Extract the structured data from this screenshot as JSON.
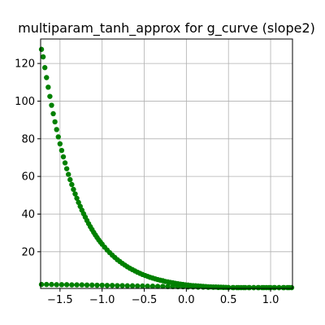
{
  "chart_data": {
    "type": "scatter",
    "title": "multiparam_tanh_approx for g_curve (slope2)",
    "xlabel": "",
    "ylabel": "",
    "xlim": [
      -1.73,
      1.26
    ],
    "ylim": [
      0.5,
      133
    ],
    "grid": true,
    "marker_color": "#008000",
    "x_ticks": [
      {
        "value": -1.5,
        "label": "−1.5"
      },
      {
        "value": -1.0,
        "label": "−1.0"
      },
      {
        "value": -0.5,
        "label": "−0.5"
      },
      {
        "value": 0.0,
        "label": "0.0"
      },
      {
        "value": 0.5,
        "label": "0.5"
      },
      {
        "value": 1.0,
        "label": "1.0"
      }
    ],
    "y_ticks": [
      {
        "value": 20,
        "label": "20"
      },
      {
        "value": 40,
        "label": "40"
      },
      {
        "value": 60,
        "label": "60"
      },
      {
        "value": 80,
        "label": "80"
      },
      {
        "value": 100,
        "label": "100"
      },
      {
        "value": 120,
        "label": "120"
      }
    ],
    "series": [
      {
        "x": [
          -1.72,
          -1.7,
          -1.68,
          -1.66,
          -1.64,
          -1.62,
          -1.6,
          -1.58,
          -1.56,
          -1.54,
          -1.52,
          -1.5,
          -1.48,
          -1.46,
          -1.44,
          -1.42,
          -1.4,
          -1.38,
          -1.36,
          -1.34,
          -1.32,
          -1.3,
          -1.28,
          -1.26,
          -1.24,
          -1.22,
          -1.2,
          -1.18,
          -1.16,
          -1.14,
          -1.12,
          -1.1,
          -1.08,
          -1.06,
          -1.04,
          -1.02,
          -1.0,
          -0.97,
          -0.94,
          -0.91,
          -0.88,
          -0.85,
          -0.82,
          -0.79,
          -0.76,
          -0.73,
          -0.7,
          -0.67,
          -0.64,
          -0.61,
          -0.58,
          -0.55,
          -0.52,
          -0.49,
          -0.46,
          -0.43,
          -0.4,
          -0.37,
          -0.34,
          -0.31,
          -0.28,
          -0.25,
          -0.22,
          -0.19,
          -0.16,
          -0.13,
          -0.1,
          -0.07,
          -0.04,
          -0.01,
          0.02,
          0.05,
          0.08,
          0.11,
          0.14,
          0.17,
          0.2,
          0.23,
          0.26,
          0.29,
          0.32,
          0.35,
          0.38,
          0.41,
          0.44,
          0.47,
          0.5,
          0.55,
          0.6,
          0.65,
          0.7,
          0.75,
          0.8,
          0.85,
          0.9,
          0.95,
          1.0,
          1.05,
          1.1,
          1.15,
          1.2,
          1.25
        ],
        "y": [
          127.5,
          123.5,
          117.8,
          112.5,
          107.4,
          102.5,
          97.8,
          93.3,
          89.0,
          84.9,
          81.0,
          77.3,
          73.8,
          70.4,
          67.2,
          64.1,
          61.1,
          58.3,
          55.7,
          53.1,
          50.7,
          48.4,
          46.2,
          44.1,
          42.1,
          40.2,
          38.4,
          36.6,
          34.9,
          33.3,
          31.8,
          30.3,
          28.9,
          27.6,
          26.3,
          25.1,
          24.0,
          22.4,
          20.9,
          19.5,
          18.2,
          17.0,
          15.8,
          14.8,
          13.8,
          12.9,
          12.0,
          11.2,
          10.5,
          9.8,
          9.1,
          8.5,
          7.9,
          7.4,
          6.9,
          6.4,
          6.0,
          5.6,
          5.2,
          4.9,
          4.6,
          4.2,
          4.0,
          3.7,
          3.5,
          3.2,
          3.0,
          2.8,
          2.6,
          2.4,
          2.3,
          2.1,
          2.0,
          1.9,
          1.8,
          1.7,
          1.6,
          1.5,
          1.4,
          1.35,
          1.3,
          1.25,
          1.2,
          1.15,
          1.1,
          1.05,
          1.0,
          0.95,
          0.9,
          0.88,
          0.86,
          0.84,
          0.82,
          0.8,
          0.79,
          0.78,
          0.77,
          0.76,
          0.75,
          0.75,
          0.74,
          0.74
        ]
      },
      {
        "x": [
          -1.72,
          -1.66,
          -1.6,
          -1.54,
          -1.48,
          -1.42,
          -1.36,
          -1.3,
          -1.24,
          -1.18,
          -1.12,
          -1.06,
          -1.0,
          -0.94,
          -0.88,
          -0.82,
          -0.76,
          -0.7,
          -0.64,
          -0.58,
          -0.52,
          -0.46,
          -0.4,
          -0.34,
          -0.28,
          -0.22,
          -0.16,
          -0.1,
          -0.04,
          0.02,
          0.08,
          0.14,
          0.2,
          0.26,
          0.32,
          0.38,
          0.44,
          0.5,
          0.56,
          0.62,
          0.68,
          0.74,
          0.8,
          0.86,
          0.92,
          0.98,
          1.04,
          1.1,
          1.16,
          1.22
        ],
        "y": [
          2.6,
          2.6,
          2.6,
          2.5,
          2.5,
          2.5,
          2.4,
          2.4,
          2.4,
          2.3,
          2.3,
          2.2,
          2.2,
          2.1,
          2.1,
          2.0,
          2.0,
          1.9,
          1.9,
          1.8,
          1.8,
          1.7,
          1.7,
          1.6,
          1.6,
          1.5,
          1.5,
          1.4,
          1.4,
          1.3,
          1.3,
          1.2,
          1.2,
          1.1,
          1.1,
          1.0,
          1.0,
          0.95,
          0.92,
          0.9,
          0.88,
          0.86,
          0.84,
          0.82,
          0.8,
          0.78,
          0.76,
          0.75,
          0.74,
          0.73
        ]
      }
    ]
  }
}
